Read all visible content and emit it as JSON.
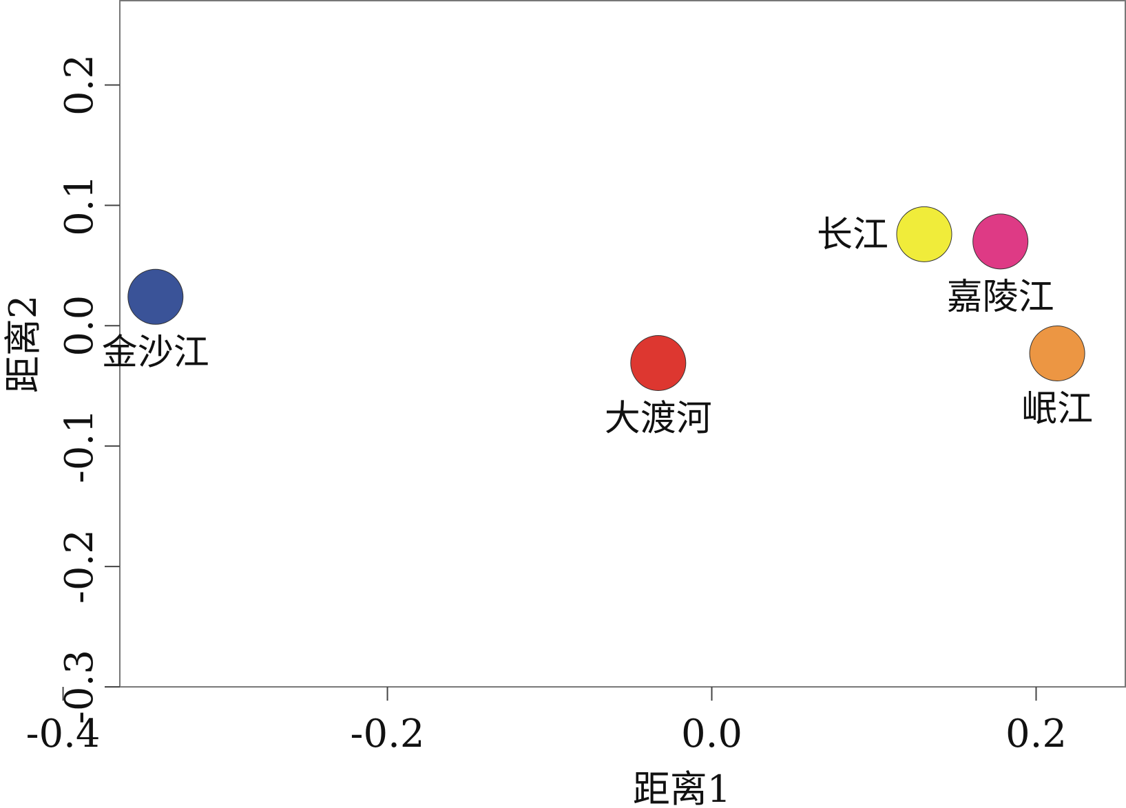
{
  "chart_data": {
    "type": "scatter",
    "title": "",
    "xlabel": "距离1",
    "ylabel": "距离2",
    "xlim": [
      -0.365,
      0.255
    ],
    "ylim": [
      -0.3,
      0.27
    ],
    "xticks": [
      -0.4,
      -0.2,
      0.0,
      0.2
    ],
    "xtick_labels": [
      "-0.4",
      "-0.2",
      "0.0",
      "0.2"
    ],
    "yticks": [
      -0.3,
      -0.2,
      -0.1,
      0.0,
      0.1,
      0.2
    ],
    "ytick_labels": [
      "-0.3",
      "-0.2",
      "-0.1",
      "0.0",
      "0.1",
      "0.2"
    ],
    "grid": false,
    "legend": "none",
    "points": [
      {
        "label": "金沙江",
        "x": -0.343,
        "y": 0.024,
        "color": "#3A5398",
        "label_position": "below"
      },
      {
        "label": "大渡河",
        "x": -0.033,
        "y": -0.031,
        "color": "#DD3730",
        "label_position": "below"
      },
      {
        "label": "长江",
        "x": 0.131,
        "y": 0.076,
        "color": "#F0EC3A",
        "label_position": "left"
      },
      {
        "label": "嘉陵江",
        "x": 0.178,
        "y": 0.07,
        "color": "#DE3A85",
        "label_position": "below"
      },
      {
        "label": "岷江",
        "x": 0.213,
        "y": -0.023,
        "color": "#EC9643",
        "label_position": "below"
      }
    ]
  }
}
